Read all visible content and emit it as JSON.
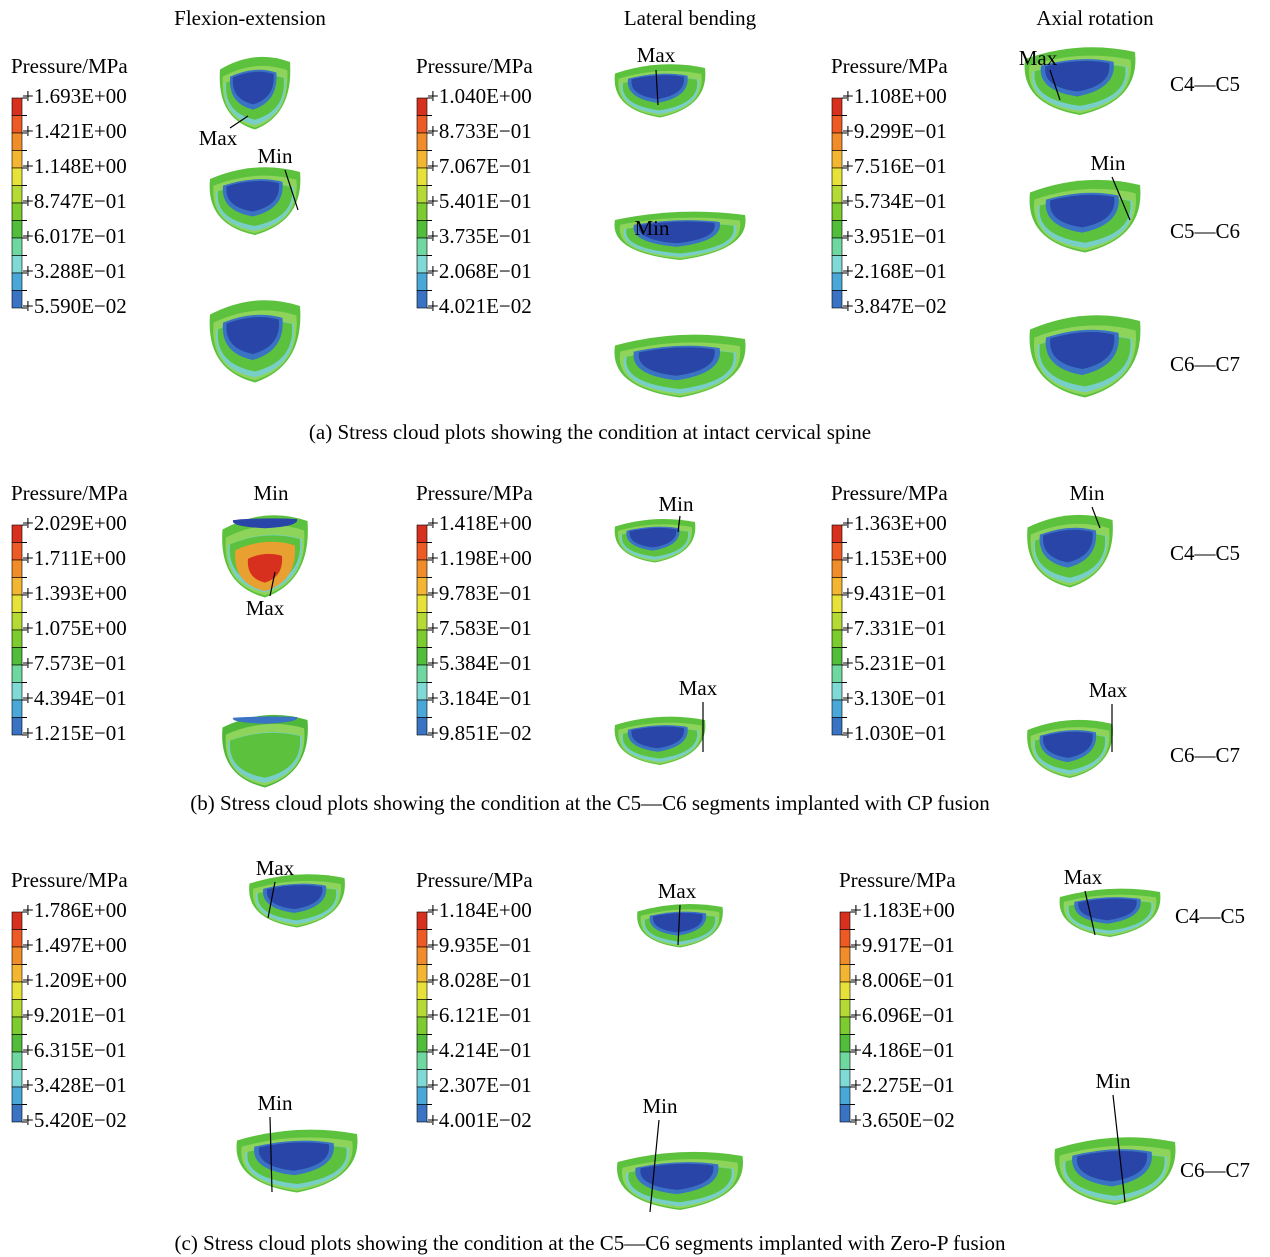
{
  "column_titles": [
    "Flexion-extension",
    "Lateral bending",
    "Axial rotation"
  ],
  "panels": [
    {
      "caption": "(a) Stress cloud plots showing the condition at intact cervical spine",
      "legends": [
        {
          "title": "Pressure/MPa",
          "values": [
            "+1.693E+00",
            "+1.421E+00",
            "+1.148E+00",
            "+8.747E−01",
            "+6.017E−01",
            "+3.288E−01",
            "+5.590E−02"
          ]
        },
        {
          "title": "Pressure/MPa",
          "values": [
            "+1.040E+00",
            "+8.733E−01",
            "+7.067E−01",
            "+5.401E−01",
            "+3.735E−01",
            "+2.068E−01",
            "+4.021E−02"
          ]
        },
        {
          "title": "Pressure/MPa",
          "values": [
            "+1.108E+00",
            "+9.299E−01",
            "+7.516E−01",
            "+5.734E−01",
            "+3.951E−01",
            "+2.168E−01",
            "+3.847E−02"
          ]
        }
      ],
      "segment_labels": [
        "C4—C5",
        "C5—C6",
        "C6—C7"
      ],
      "annotations": [
        "Max",
        "Min",
        "Max",
        "Min",
        "Max",
        "Min"
      ]
    },
    {
      "caption": "(b) Stress cloud plots showing the condition at the C5—C6 segments implanted with CP fusion",
      "legends": [
        {
          "title": "Pressure/MPa",
          "values": [
            "+2.029E+00",
            "+1.711E+00",
            "+1.393E+00",
            "+1.075E+00",
            "+7.573E−01",
            "+4.394E−01",
            "+1.215E−01"
          ]
        },
        {
          "title": "Pressure/MPa",
          "values": [
            "+1.418E+00",
            "+1.198E+00",
            "+9.783E−01",
            "+7.583E−01",
            "+5.384E−01",
            "+3.184E−01",
            "+9.851E−02"
          ]
        },
        {
          "title": "Pressure/MPa",
          "values": [
            "+1.363E+00",
            "+1.153E+00",
            "+9.431E−01",
            "+7.331E−01",
            "+5.231E−01",
            "+3.130E−01",
            "+1.030E−01"
          ]
        }
      ],
      "segment_labels": [
        "C4—C5",
        "C6—C7"
      ],
      "annotations": [
        "Min",
        "Max",
        "Min",
        "Max",
        "Min",
        "Max"
      ]
    },
    {
      "caption": "(c) Stress cloud plots showing the condition at the C5—C6 segments implanted with Zero-P fusion",
      "legends": [
        {
          "title": "Pressure/MPa",
          "values": [
            "+1.786E+00",
            "+1.497E+00",
            "+1.209E+00",
            "+9.201E−01",
            "+6.315E−01",
            "+3.428E−01",
            "+5.420E−02"
          ]
        },
        {
          "title": "Pressure/MPa",
          "values": [
            "+1.184E+00",
            "+9.935E−01",
            "+8.028E−01",
            "+6.121E−01",
            "+4.214E−01",
            "+2.307E−01",
            "+4.001E−02"
          ]
        },
        {
          "title": "Pressure/MPa",
          "values": [
            "+1.183E+00",
            "+9.917E−01",
            "+8.006E−01",
            "+6.096E−01",
            "+4.186E−01",
            "+2.275E−01",
            "+3.650E−02"
          ]
        }
      ],
      "segment_labels": [
        "C4—C5",
        "C6—C7"
      ],
      "annotations": [
        "Max",
        "Min",
        "Max",
        "Min",
        "Max",
        "Min"
      ]
    }
  ]
}
